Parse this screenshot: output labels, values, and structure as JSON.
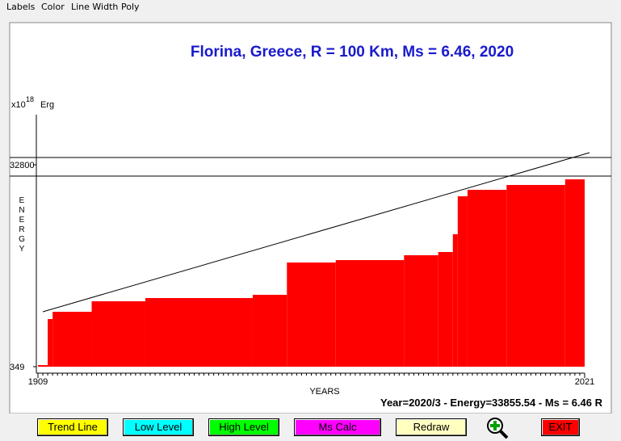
{
  "menu": [
    "Labels",
    "Color",
    "Line Width",
    "Poly"
  ],
  "chart_data": {
    "type": "step",
    "title": "Florina, Greece, R = 100 Km, Ms = 6.46, 2020",
    "y_unit": {
      "base": "x10",
      "exponent": "18",
      "unit": "Erg"
    },
    "ylabel": "ENERGY",
    "xlabel": "YEARS",
    "x": [
      1909,
      1911,
      1912,
      1920,
      1931,
      1953,
      1960,
      1970,
      1984,
      1991,
      1994,
      1995,
      1997,
      2005,
      2017
    ],
    "values": [
      600,
      8007,
      9175,
      10862,
      11381,
      11900,
      17093,
      17482,
      18261,
      18781,
      21637,
      27737,
      28775,
      29554,
      30463
    ],
    "color": "#ff0000",
    "xlim": [
      1909,
      2021
    ],
    "xticks": [
      1909,
      2021
    ],
    "ylim": [
      349,
      40850
    ],
    "yticks": [
      349,
      32800
    ],
    "trend": {
      "x": [
        1910,
        2022
      ],
      "values": [
        9175,
        34747
      ]
    },
    "levels": [
      33967,
      30983
    ],
    "status": "Year=2020/3 - Energy=33855.54 - Ms = 6.46 R"
  },
  "buttons": [
    {
      "label": "Trend Line",
      "color": "#ffff00"
    },
    {
      "label": "Low Level",
      "color": "#00ffff"
    },
    {
      "label": "High Level",
      "color": "#00ff00"
    },
    {
      "label": "Ms Calc",
      "color": "#ff00ff"
    },
    {
      "label": "Redraw",
      "color": "#ffffc0"
    },
    {
      "label": "EXIT",
      "color": "#ff0000"
    }
  ]
}
